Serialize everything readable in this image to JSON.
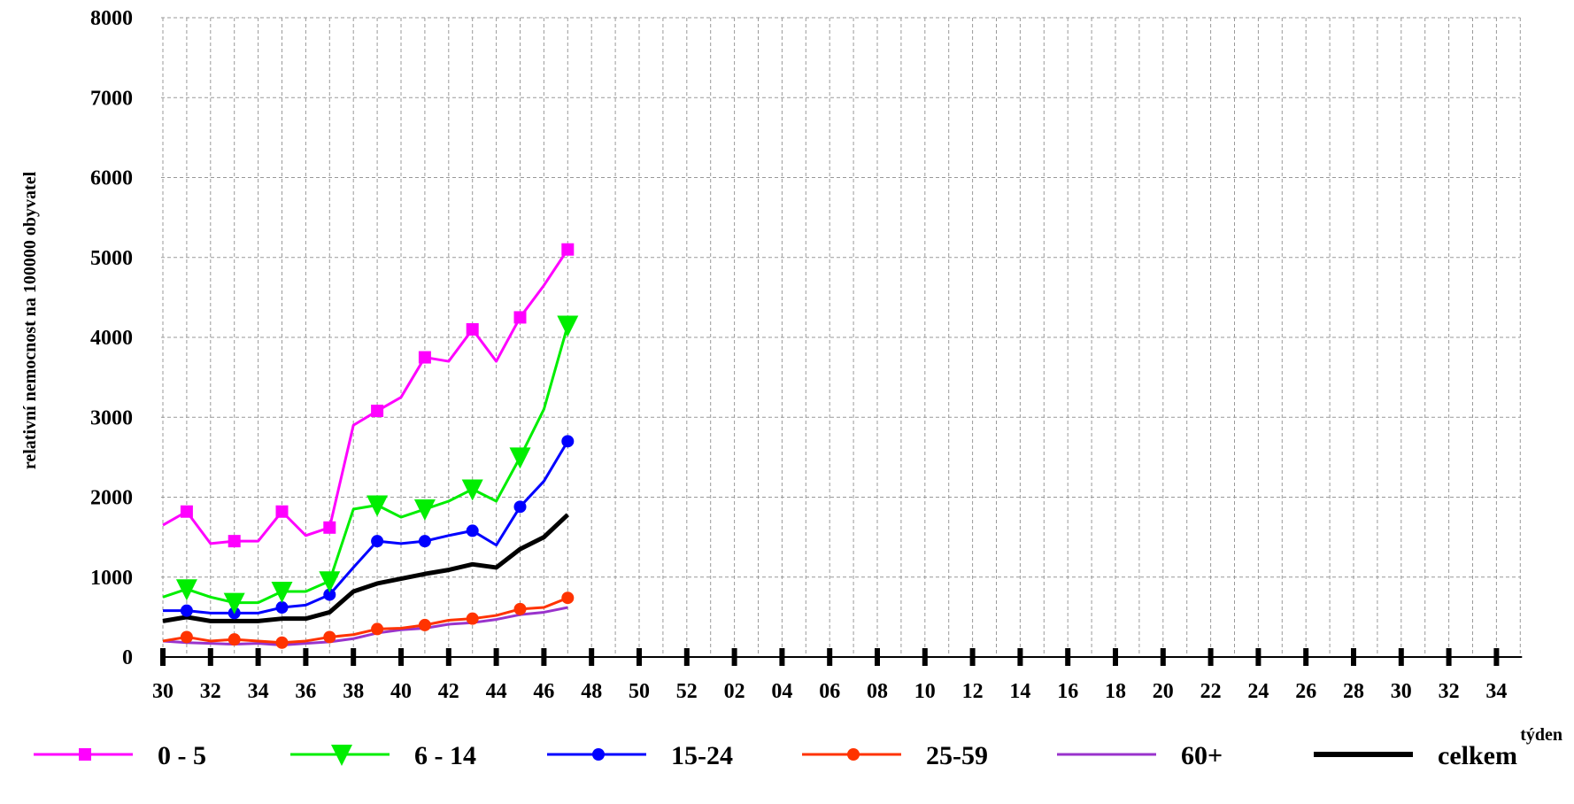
{
  "chart_data": {
    "type": "line",
    "ylabel": "relativní nemocnost na 100000 obyvatel",
    "xlabel": "týden",
    "ylim": [
      0,
      8000
    ],
    "yticks": [
      0,
      1000,
      2000,
      3000,
      4000,
      5000,
      6000,
      7000,
      8000
    ],
    "x_categories": [
      "30",
      "31",
      "32",
      "33",
      "34",
      "35",
      "36",
      "37",
      "38",
      "39",
      "40",
      "41",
      "42",
      "43",
      "44",
      "45",
      "46",
      "47",
      "48",
      "49",
      "50",
      "51",
      "52",
      "01",
      "02",
      "03",
      "04",
      "05",
      "06",
      "07",
      "08",
      "09",
      "10",
      "11",
      "12",
      "13",
      "14",
      "15",
      "16",
      "17",
      "18",
      "19",
      "20",
      "21",
      "22",
      "23",
      "24",
      "25",
      "26",
      "27",
      "28",
      "29",
      "30",
      "31",
      "32",
      "33",
      "34",
      "35"
    ],
    "x_tick_labels": [
      "30",
      "32",
      "34",
      "36",
      "38",
      "40",
      "42",
      "44",
      "46",
      "48",
      "50",
      "52",
      "02",
      "04",
      "06",
      "08",
      "10",
      "12",
      "14",
      "16",
      "18",
      "20",
      "22",
      "24",
      "26",
      "28",
      "30",
      "32",
      "34"
    ],
    "grid": true,
    "legend_position": "bottom",
    "series": [
      {
        "name": "0 - 5",
        "color": "#ff00ff",
        "marker": "square",
        "values": [
          1650,
          1820,
          1420,
          1450,
          1450,
          1820,
          1520,
          1620,
          2900,
          3080,
          3250,
          3750,
          3700,
          4100,
          3700,
          4250,
          4650,
          5100
        ]
      },
      {
        "name": "6 - 14",
        "color": "#00ee00",
        "marker": "triangle-down",
        "values": [
          750,
          850,
          750,
          680,
          680,
          820,
          820,
          950,
          1850,
          1900,
          1750,
          1850,
          1950,
          2100,
          1950,
          2500,
          3100,
          4150
        ]
      },
      {
        "name": "15-24",
        "color": "#0000ff",
        "marker": "circle",
        "values": [
          580,
          580,
          550,
          550,
          550,
          620,
          650,
          780,
          1120,
          1450,
          1420,
          1450,
          1520,
          1580,
          1400,
          1880,
          2200,
          2700
        ]
      },
      {
        "name": "25-59",
        "color": "#ff3300",
        "marker": "circle",
        "values": [
          200,
          250,
          200,
          220,
          200,
          180,
          200,
          250,
          280,
          350,
          360,
          400,
          460,
          480,
          520,
          600,
          620,
          740
        ]
      },
      {
        "name": "60+",
        "color": "#9933cc",
        "marker": "none",
        "values": [
          200,
          180,
          170,
          160,
          170,
          150,
          170,
          190,
          230,
          300,
          340,
          360,
          410,
          430,
          470,
          530,
          560,
          620
        ]
      },
      {
        "name": "celkem",
        "color": "#000000",
        "marker": "none",
        "values": [
          450,
          500,
          450,
          450,
          450,
          480,
          480,
          560,
          820,
          920,
          980,
          1040,
          1090,
          1160,
          1120,
          1350,
          1500,
          1780
        ]
      }
    ]
  }
}
